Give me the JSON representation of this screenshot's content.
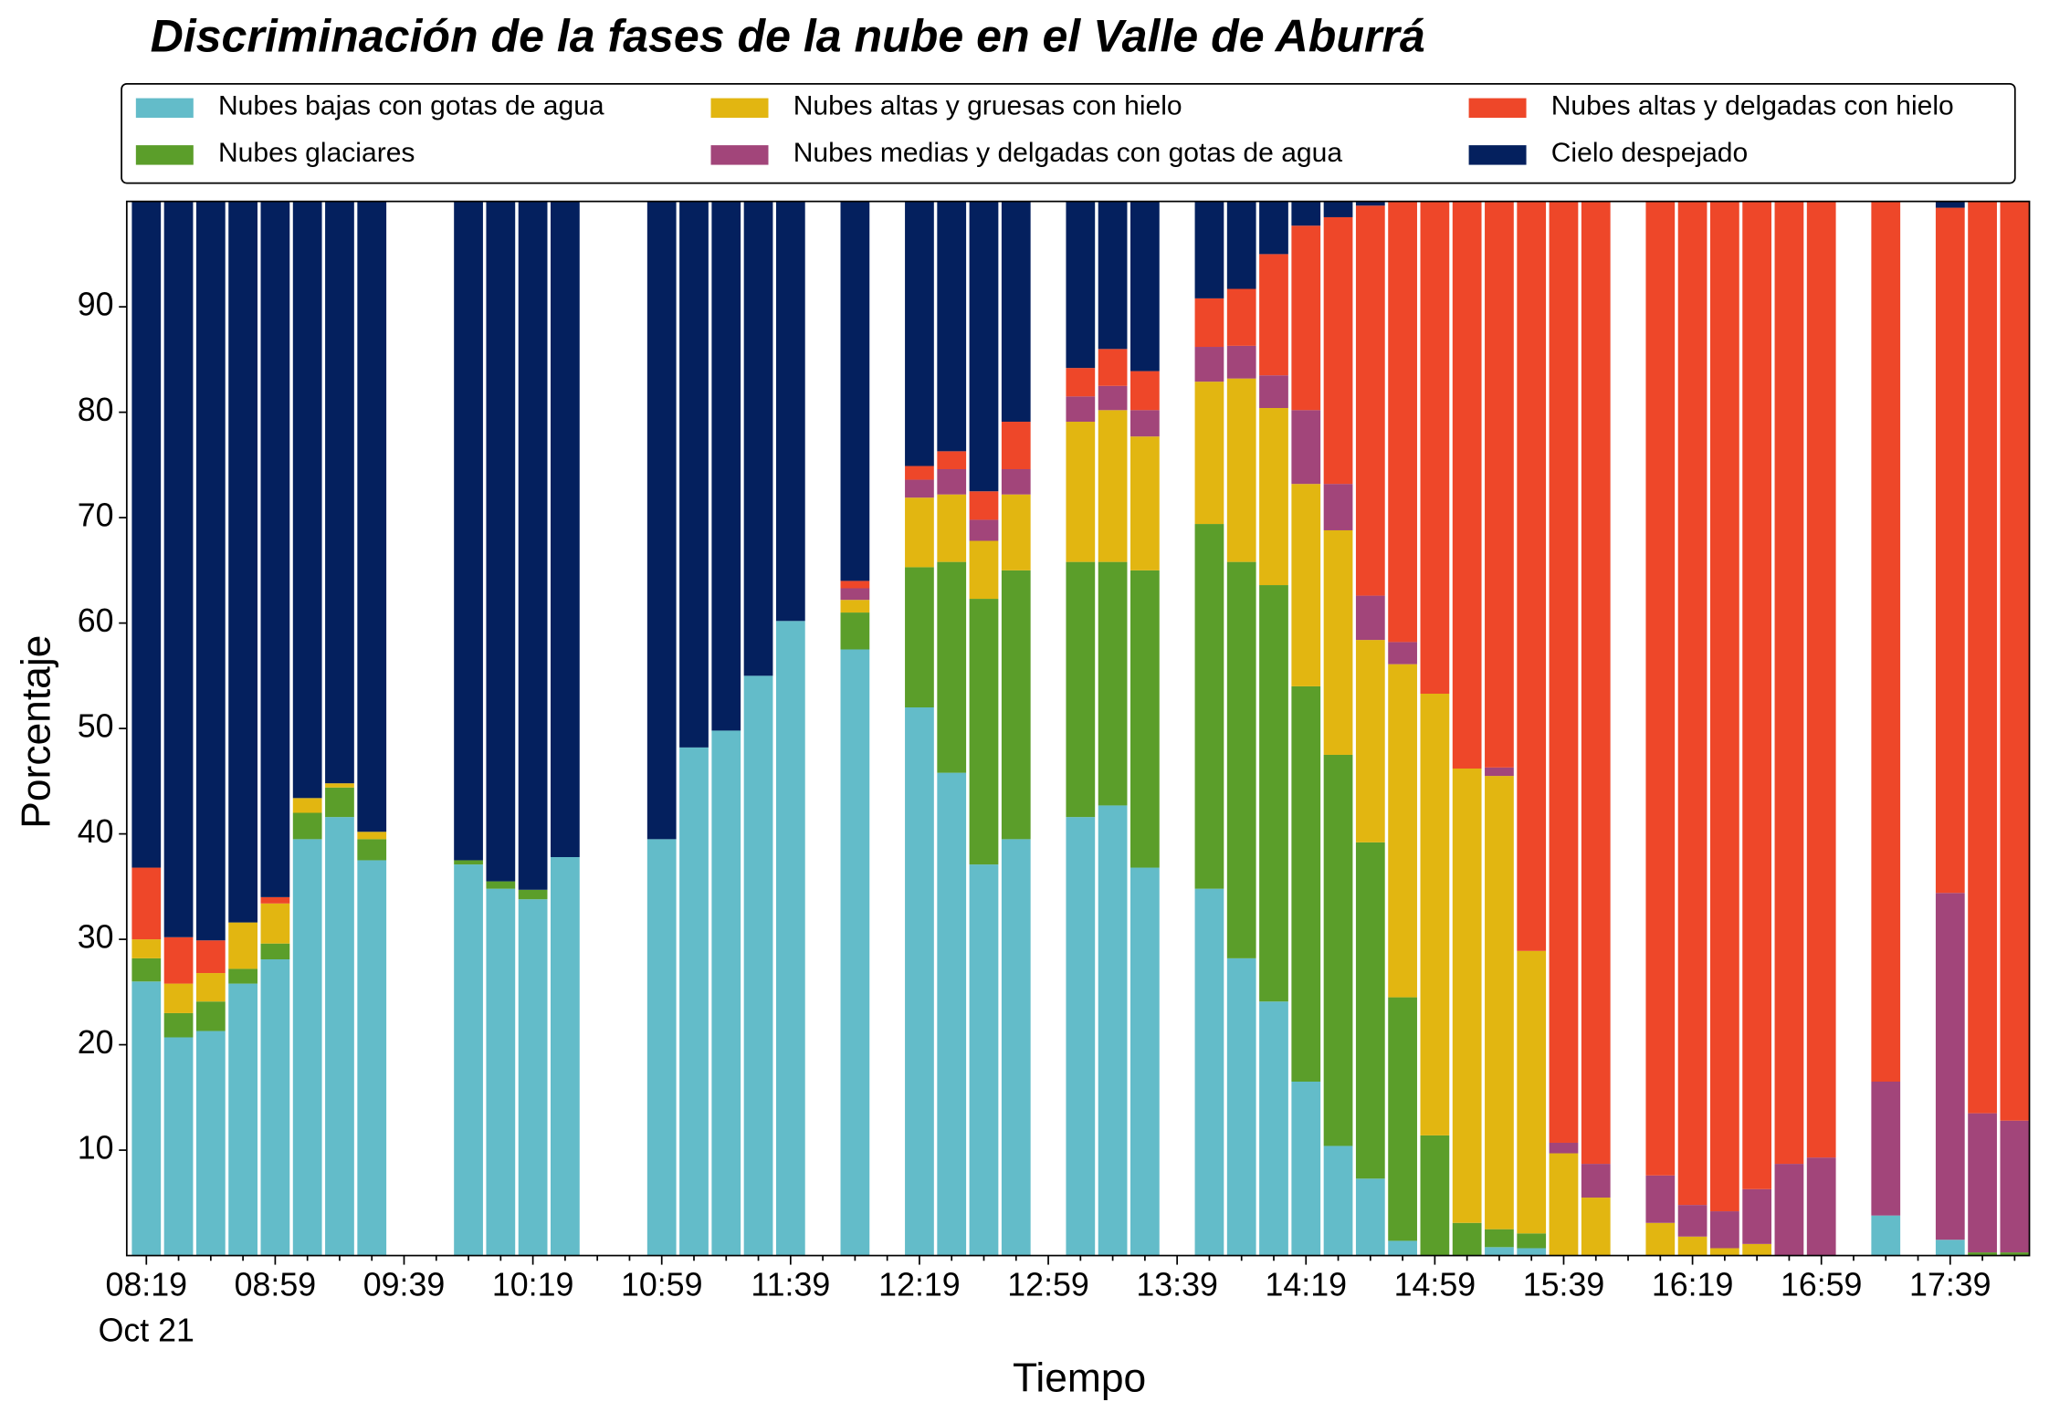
{
  "chart_data": {
    "type": "stacked_bar",
    "title": "Discriminación de la fases de la nube en el Valle de Aburrá",
    "x_label": "Tiempo",
    "y_label": "Porcentaje",
    "x_sublabel": "Oct 21",
    "categories": [
      "08:19",
      null,
      null,
      null,
      "08:59",
      null,
      null,
      null,
      "09:39",
      null,
      null,
      null,
      "10:19",
      null,
      null,
      null,
      "10:59",
      null,
      null,
      null,
      "11:39",
      null,
      null,
      null,
      "12:19",
      null,
      null,
      null,
      "12:59",
      null,
      null,
      null,
      "13:39",
      null,
      null,
      null,
      "14:19",
      null,
      null,
      null,
      "14:59",
      null,
      null,
      null,
      "15:39",
      null,
      null,
      null,
      "16:19",
      null,
      null,
      null,
      "16:59",
      null,
      null,
      null,
      "17:39",
      null,
      null
    ],
    "series": [
      {
        "name": "Nubes bajas con gotas de agua",
        "color": "#63bcc9",
        "values": [
          26,
          20.7,
          21.3,
          25.8,
          28.1,
          39.5,
          41.6,
          37.5,
          null,
          null,
          37.1,
          34.8,
          33.8,
          37.8,
          null,
          null,
          39.5,
          48.2,
          49.8,
          55,
          60.2,
          null,
          57.5,
          null,
          52,
          45.8,
          37.1,
          39.5,
          null,
          41.6,
          42.7,
          36.8,
          null,
          34.8,
          28.2,
          24.1,
          16.5,
          10.4,
          7.3,
          1.4,
          0,
          0,
          0.8,
          0.7,
          0,
          0,
          null,
          0,
          0,
          0,
          0,
          0,
          0,
          null,
          3.8,
          null,
          1.5,
          0,
          0
        ]
      },
      {
        "name": "Nubes glaciares",
        "color": "#5b9e2a",
        "values": [
          2.2,
          2.3,
          2.8,
          1.4,
          1.5,
          2.5,
          2.8,
          2,
          null,
          null,
          0.4,
          0.7,
          0.9,
          0,
          null,
          null,
          0,
          0,
          0,
          0,
          0,
          null,
          3.5,
          null,
          13.3,
          20,
          25.2,
          25.5,
          null,
          24.2,
          23.1,
          28.2,
          null,
          34.6,
          37.6,
          39.5,
          37.5,
          37.1,
          31.9,
          23.1,
          11.4,
          3.1,
          1.7,
          1.4,
          0,
          0,
          null,
          0,
          0,
          0,
          0,
          0,
          0,
          null,
          0,
          null,
          0,
          0.3,
          0.3
        ]
      },
      {
        "name": "Nubes altas y gruesas con hielo",
        "color": "#e2b611",
        "values": [
          1.8,
          2.8,
          2.7,
          4.4,
          3.8,
          1.4,
          0.4,
          0.7,
          null,
          null,
          0,
          0,
          0,
          0,
          null,
          null,
          0,
          0,
          0,
          0,
          0,
          null,
          1.2,
          null,
          6.6,
          6.4,
          5.5,
          7.2,
          null,
          13.3,
          14.4,
          12.7,
          null,
          13.5,
          17.4,
          16.8,
          19.2,
          21.3,
          19.2,
          31.6,
          41.9,
          43.1,
          43,
          26.8,
          9.7,
          5.5,
          null,
          3.1,
          1.8,
          0.7,
          1.1,
          0,
          0,
          null,
          0,
          null,
          0,
          0,
          0
        ]
      },
      {
        "name": "Nubes medias y delgadas con gotas de agua",
        "color": "#a2457a",
        "values": [
          0,
          0,
          0,
          0,
          0,
          0,
          0,
          0,
          null,
          null,
          0,
          0,
          0,
          0,
          null,
          null,
          0,
          0,
          0,
          0,
          0,
          null,
          1.1,
          null,
          1.7,
          2.4,
          2,
          2.4,
          null,
          2.4,
          2.3,
          2.5,
          null,
          3.3,
          3.1,
          3.1,
          7,
          4.4,
          4.2,
          2.1,
          0,
          0,
          0.8,
          0,
          1,
          3.2,
          null,
          4.5,
          3,
          3.5,
          5.2,
          8.7,
          9.3,
          null,
          12.7,
          null,
          32.9,
          13.2,
          12.5
        ]
      },
      {
        "name": "Nubes altas y delgadas con hielo",
        "color": "#ee4729",
        "values": [
          6.8,
          4.4,
          3.1,
          0,
          0.6,
          0,
          0,
          0,
          null,
          null,
          0,
          0,
          0,
          0,
          null,
          null,
          0,
          0,
          0,
          0,
          0,
          null,
          0.7,
          null,
          1.3,
          1.7,
          2.7,
          4.5,
          null,
          2.7,
          3.5,
          3.7,
          null,
          4.6,
          5.4,
          11.5,
          17.5,
          25.3,
          37,
          41.8,
          46.7,
          53.8,
          53.7,
          71.1,
          89.3,
          91.3,
          null,
          92.4,
          95.2,
          95.8,
          93.7,
          91.3,
          90.7,
          null,
          83.5,
          null,
          65,
          86.5,
          87.2
        ]
      },
      {
        "name": "Cielo despejado",
        "color": "#04205e",
        "values": [
          63.2,
          69.8,
          70.1,
          68.4,
          66,
          56.6,
          55.2,
          59.8,
          null,
          null,
          62.5,
          64.5,
          65.3,
          62.2,
          null,
          null,
          60.5,
          51.8,
          50.2,
          45,
          39.8,
          null,
          36,
          null,
          25.1,
          23.7,
          27.5,
          20.9,
          null,
          15.8,
          14,
          16.1,
          null,
          9.2,
          8.3,
          5,
          2.3,
          1.5,
          0.4,
          0,
          0,
          0,
          0,
          0,
          0,
          0,
          null,
          0,
          0,
          0,
          0,
          0,
          0,
          null,
          0,
          null,
          0.6,
          0,
          0
        ]
      }
    ],
    "ylim": [
      0,
      100
    ],
    "yticks": [
      10,
      20,
      30,
      40,
      50,
      60,
      70,
      80,
      90
    ],
    "grid": false,
    "legend": "top"
  }
}
